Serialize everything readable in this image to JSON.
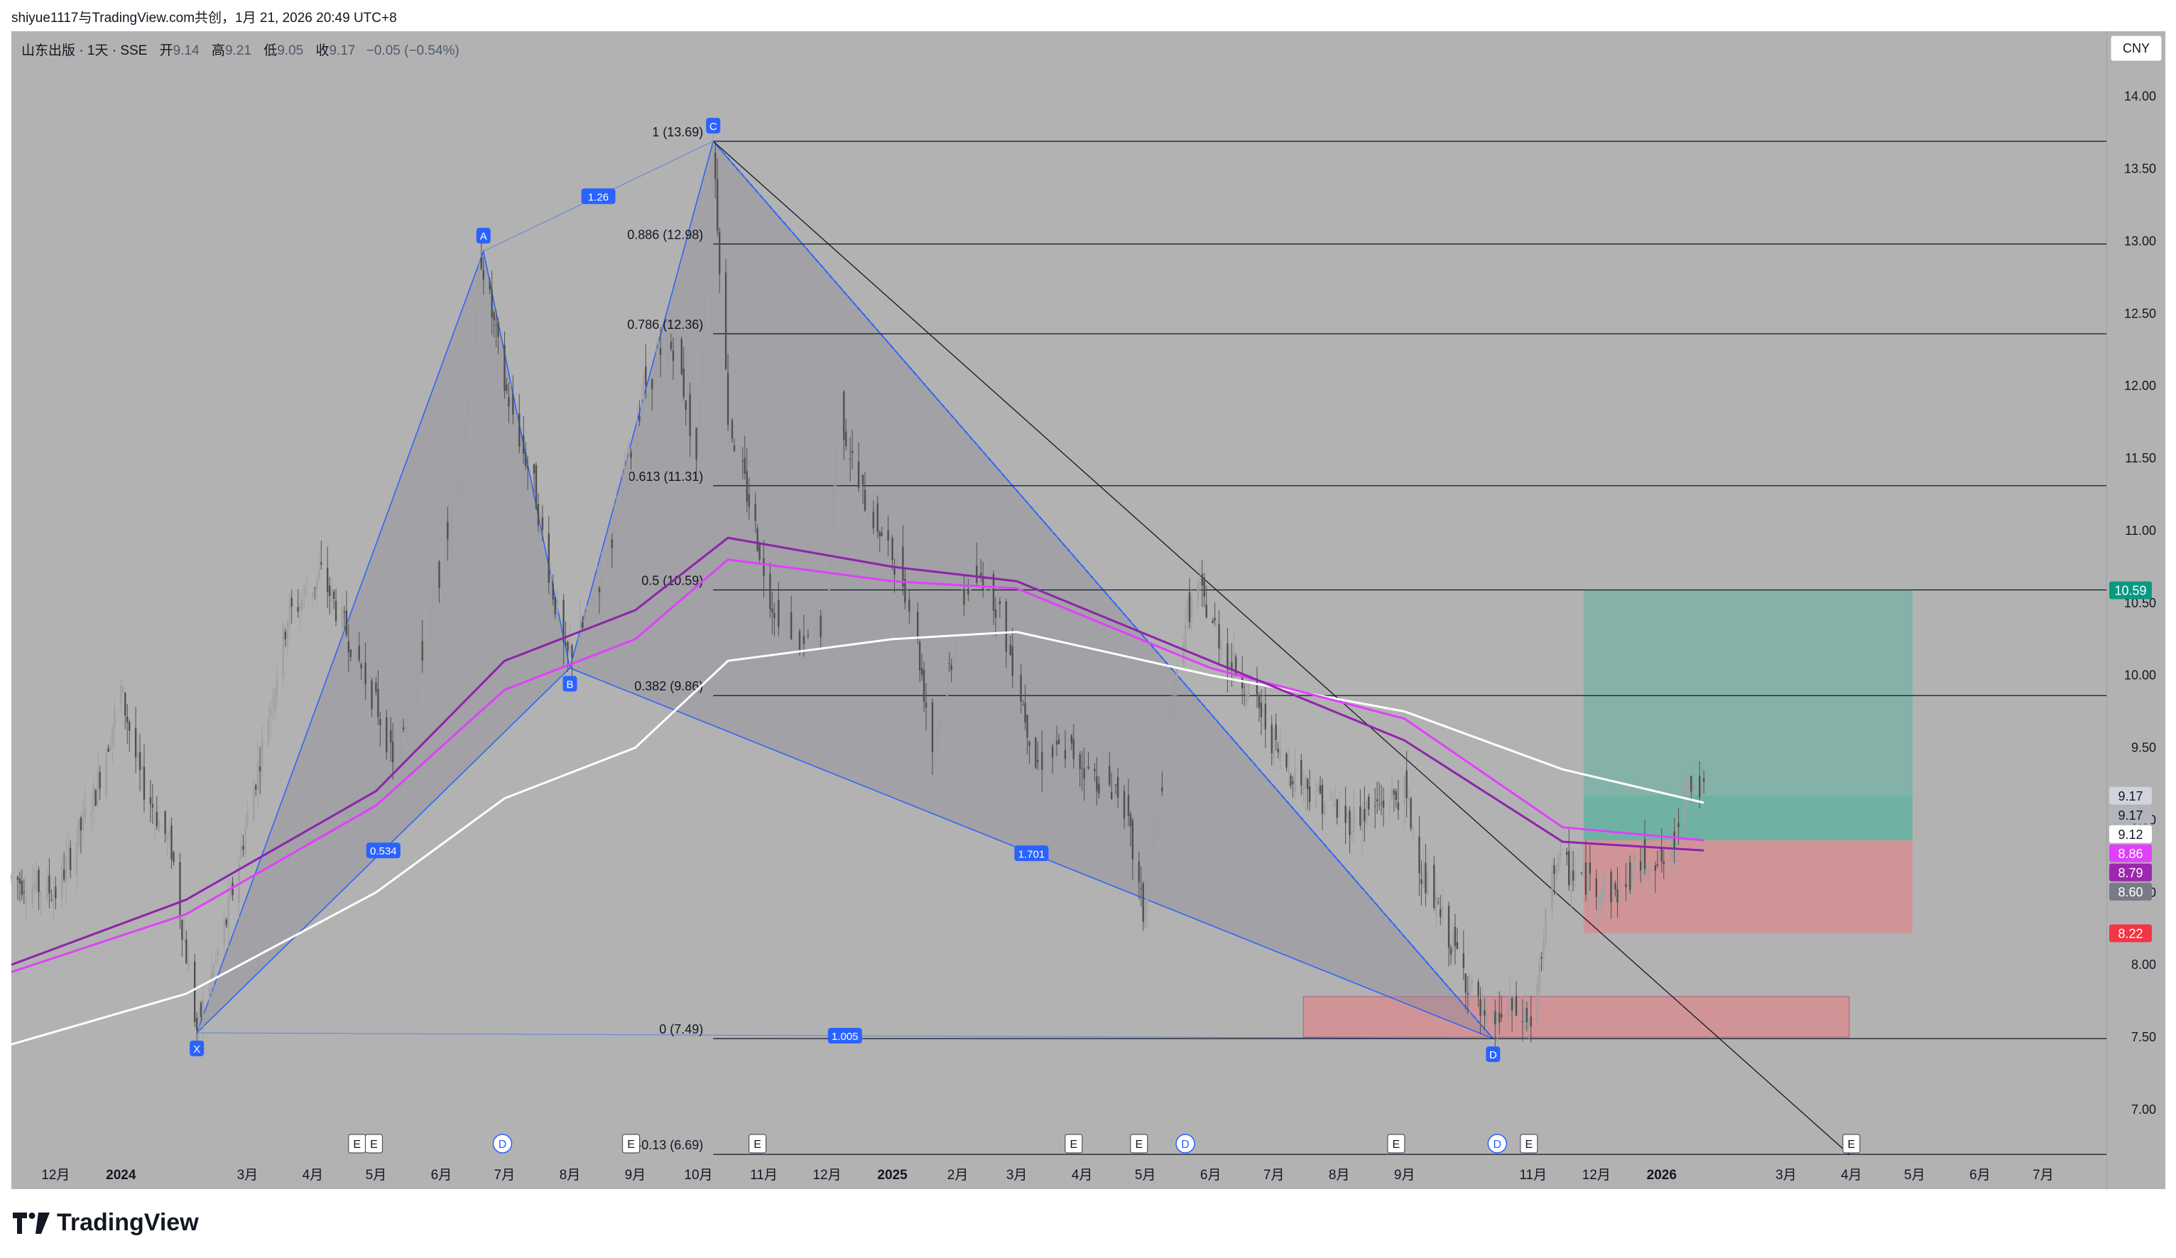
{
  "header": {
    "snapshot_text": "shiyue1117与TradingView.com共创，1月 21, 2026 20:49 UTC+8"
  },
  "legend": {
    "symbol": "山东出版 · 1天 · SSE",
    "open_label": "开",
    "open": "9.14",
    "high_label": "高",
    "high": "9.21",
    "low_label": "低",
    "low": "9.05",
    "close_label": "收",
    "close": "9.17",
    "change": "−0.05 (−0.54%)"
  },
  "currency_button": "CNY",
  "brand": "TradingView",
  "chart_data": {
    "type": "candlestick",
    "title": "山东出版 · 1天 · SSE",
    "ylim": [
      6.45,
      14.45
    ],
    "y_ticks": [
      "14.00",
      "13.50",
      "13.00",
      "12.50",
      "12.00",
      "11.50",
      "11.00",
      "10.50",
      "10.00",
      "9.50",
      "9.00",
      "8.50",
      "8.00",
      "7.50",
      "7.00"
    ],
    "x_ticks": [
      "12月",
      "2024",
      "3月",
      "4月",
      "5月",
      "6月",
      "7月",
      "8月",
      "9月",
      "10月",
      "11月",
      "12月",
      "2025",
      "2月",
      "3月",
      "4月",
      "5月",
      "6月",
      "7月",
      "8月",
      "9月",
      "11月",
      "12月",
      "2026",
      "3月",
      "4月",
      "5月",
      "6月",
      "7月"
    ],
    "x_tick_dates": [
      "2023-12-01",
      "2024-01-01",
      "2024-03-01",
      "2024-04-01",
      "2024-05-01",
      "2024-06-01",
      "2024-07-01",
      "2024-08-01",
      "2024-09-01",
      "2024-10-01",
      "2024-11-01",
      "2024-12-01",
      "2025-01-01",
      "2025-02-01",
      "2025-03-01",
      "2025-04-01",
      "2025-05-01",
      "2025-06-01",
      "2025-07-01",
      "2025-08-01",
      "2025-09-01",
      "2025-11-01",
      "2025-12-01",
      "2026-01-01",
      "2026-03-01",
      "2026-04-01",
      "2026-05-01",
      "2026-06-01",
      "2026-07-01"
    ],
    "x_range": [
      "2023-11-10",
      "2026-07-31"
    ],
    "price_path": [
      [
        "2023-11-10",
        8.6
      ],
      [
        "2023-12-01",
        8.5
      ],
      [
        "2023-12-20",
        9.2
      ],
      [
        "2024-01-01",
        9.9
      ],
      [
        "2024-01-10",
        9.3
      ],
      [
        "2024-01-25",
        8.8
      ],
      [
        "2024-02-06",
        7.55
      ],
      [
        "2024-02-20",
        8.3
      ],
      [
        "2024-03-05",
        9.3
      ],
      [
        "2024-03-20",
        10.4
      ],
      [
        "2024-04-05",
        10.7
      ],
      [
        "2024-04-20",
        10.2
      ],
      [
        "2024-05-01",
        9.8
      ],
      [
        "2024-05-10",
        9.4
      ],
      [
        "2024-05-25",
        10.3
      ],
      [
        "2024-06-10",
        11.4
      ],
      [
        "2024-06-20",
        12.9
      ],
      [
        "2024-07-01",
        12.0
      ],
      [
        "2024-07-15",
        11.3
      ],
      [
        "2024-07-30",
        10.1
      ],
      [
        "2024-08-10",
        10.4
      ],
      [
        "2024-08-25",
        11.2
      ],
      [
        "2024-09-05",
        12.0
      ],
      [
        "2024-09-20",
        12.3
      ],
      [
        "2024-09-30",
        11.5
      ],
      [
        "2024-10-08",
        13.69
      ],
      [
        "2024-10-15",
        11.8
      ],
      [
        "2024-10-25",
        11.2
      ],
      [
        "2024-11-05",
        10.5
      ],
      [
        "2024-11-20",
        10.2
      ],
      [
        "2024-12-01",
        10.4
      ],
      [
        "2024-12-06",
        11.9
      ],
      [
        "2024-12-16",
        11.3
      ],
      [
        "2025-01-02",
        10.8
      ],
      [
        "2025-01-10",
        10.5
      ],
      [
        "2025-01-20",
        9.5
      ],
      [
        "2025-02-05",
        10.6
      ],
      [
        "2025-02-15",
        10.7
      ],
      [
        "2025-03-01",
        10.0
      ],
      [
        "2025-03-10",
        9.4
      ],
      [
        "2025-03-25",
        9.5
      ],
      [
        "2025-04-07",
        9.3
      ],
      [
        "2025-04-20",
        9.2
      ],
      [
        "2025-04-30",
        8.35
      ],
      [
        "2025-05-10",
        9.4
      ],
      [
        "2025-05-20",
        10.4
      ],
      [
        "2025-05-26",
        10.6
      ],
      [
        "2025-06-10",
        10.1
      ],
      [
        "2025-06-20",
        9.9
      ],
      [
        "2025-07-05",
        9.4
      ],
      [
        "2025-07-20",
        9.2
      ],
      [
        "2025-08-05",
        9.0
      ],
      [
        "2025-08-20",
        9.1
      ],
      [
        "2025-09-01",
        9.2
      ],
      [
        "2025-09-10",
        8.6
      ],
      [
        "2025-09-25",
        8.1
      ],
      [
        "2025-10-10",
        7.55
      ],
      [
        "2025-10-20",
        7.7
      ],
      [
        "2025-10-31",
        7.6
      ],
      [
        "2025-11-05",
        8.0
      ],
      [
        "2025-11-10",
        8.7
      ],
      [
        "2025-11-25",
        8.6
      ],
      [
        "2025-12-10",
        8.5
      ],
      [
        "2025-12-25",
        8.75
      ],
      [
        "2026-01-05",
        8.7
      ],
      [
        "2026-01-12",
        9.3
      ],
      [
        "2026-01-21",
        9.17
      ]
    ],
    "moving_averages": [
      {
        "name": "MA1",
        "color": "#ffffff",
        "points": [
          [
            "2023-11-10",
            7.45
          ],
          [
            "2024-02-01",
            7.8
          ],
          [
            "2024-05-01",
            8.5
          ],
          [
            "2024-07-01",
            9.15
          ],
          [
            "2024-09-01",
            9.5
          ],
          [
            "2024-10-15",
            10.1
          ],
          [
            "2025-01-01",
            10.25
          ],
          [
            "2025-03-01",
            10.3
          ],
          [
            "2025-06-01",
            10.0
          ],
          [
            "2025-09-01",
            9.75
          ],
          [
            "2025-11-15",
            9.35
          ],
          [
            "2026-01-21",
            9.12
          ]
        ]
      },
      {
        "name": "MA2",
        "color": "#e040fb",
        "points": [
          [
            "2023-11-10",
            7.95
          ],
          [
            "2024-02-01",
            8.35
          ],
          [
            "2024-05-01",
            9.1
          ],
          [
            "2024-07-01",
            9.9
          ],
          [
            "2024-09-01",
            10.25
          ],
          [
            "2024-10-15",
            10.8
          ],
          [
            "2025-01-01",
            10.65
          ],
          [
            "2025-03-01",
            10.6
          ],
          [
            "2025-06-01",
            10.05
          ],
          [
            "2025-09-01",
            9.7
          ],
          [
            "2025-11-15",
            8.95
          ],
          [
            "2026-01-21",
            8.86
          ]
        ]
      },
      {
        "name": "MA3",
        "color": "#8e24aa",
        "points": [
          [
            "2023-11-10",
            8.0
          ],
          [
            "2024-02-01",
            8.45
          ],
          [
            "2024-05-01",
            9.2
          ],
          [
            "2024-07-01",
            10.1
          ],
          [
            "2024-09-01",
            10.45
          ],
          [
            "2024-10-15",
            10.95
          ],
          [
            "2025-01-01",
            10.75
          ],
          [
            "2025-03-01",
            10.65
          ],
          [
            "2025-06-01",
            10.1
          ],
          [
            "2025-09-01",
            9.55
          ],
          [
            "2025-11-15",
            8.85
          ],
          [
            "2026-01-21",
            8.79
          ]
        ]
      }
    ],
    "fib_levels": [
      {
        "label": "1 (13.69)",
        "value": 13.69
      },
      {
        "label": "0.886 (12.98)",
        "value": 12.98
      },
      {
        "label": "0.786 (12.36)",
        "value": 12.36
      },
      {
        "label": "0.613 (11.31)",
        "value": 11.31
      },
      {
        "label": "0.5 (10.59)",
        "value": 10.59
      },
      {
        "label": "0.382 (9.86)",
        "value": 9.86
      },
      {
        "label": "0 (7.49)",
        "value": 7.49
      },
      {
        "label": "-0.13 (6.69)",
        "value": 6.69
      }
    ],
    "harmonic_points": [
      {
        "label": "X",
        "date": "2024-02-06",
        "price": 7.53
      },
      {
        "label": "A",
        "date": "2024-06-21",
        "price": 12.93
      },
      {
        "label": "B",
        "date": "2024-08-01",
        "price": 10.05
      },
      {
        "label": "C",
        "date": "2024-10-08",
        "price": 13.69
      },
      {
        "label": "D",
        "date": "2025-10-13",
        "price": 7.49
      }
    ],
    "harmonic_ratios": [
      "0.534",
      "1.26",
      "1.701",
      "1.005"
    ],
    "price_labels": [
      {
        "value": "10.59",
        "bg": "#089981",
        "fg": "#ffffff"
      },
      {
        "value": "9.17",
        "bg": "#d1d4dc",
        "fg": "#131722"
      },
      {
        "value": "9.17",
        "bg": "#b2b5be",
        "fg": "#131722"
      },
      {
        "value": "9.12",
        "bg": "#ffffff",
        "fg": "#131722"
      },
      {
        "value": "8.86",
        "bg": "#e040fb",
        "fg": "#ffffff"
      },
      {
        "value": "8.79",
        "bg": "#9c27b0",
        "fg": "#ffffff"
      },
      {
        "value": "8.60",
        "bg": "#787b86",
        "fg": "#ffffff"
      },
      {
        "value": "8.22",
        "bg": "#f23645",
        "fg": "#ffffff"
      }
    ],
    "position": {
      "entry": 8.86,
      "target": 10.59,
      "stop": 8.22,
      "current": 9.17,
      "start": "2025-11-25",
      "end": "2026-04-30"
    },
    "demand_zone": {
      "top": 7.78,
      "bottom": 7.5,
      "start": "2025-07-15",
      "end": "2026-03-31"
    },
    "trendline": [
      {
        "date": "2024-10-08",
        "price": 13.69
      },
      {
        "date": "2026-03-31",
        "price": 6.69
      }
    ],
    "events": [
      {
        "type": "E",
        "date": "2024-04-22"
      },
      {
        "type": "E",
        "date": "2024-04-30"
      },
      {
        "type": "D",
        "date": "2024-06-30"
      },
      {
        "type": "E",
        "date": "2024-08-30"
      },
      {
        "type": "E",
        "date": "2024-10-29"
      },
      {
        "type": "E",
        "date": "2025-03-28"
      },
      {
        "type": "E",
        "date": "2025-04-28"
      },
      {
        "type": "D",
        "date": "2025-05-20"
      },
      {
        "type": "E",
        "date": "2025-08-28"
      },
      {
        "type": "D",
        "date": "2025-10-15"
      },
      {
        "type": "E",
        "date": "2025-10-30"
      },
      {
        "type": "E",
        "date": "2026-04-01"
      }
    ],
    "colors": {
      "background": "#b2b2b2",
      "up": "#a0a0a0",
      "down": "#505050",
      "harmonic": "#2962ff",
      "fib": "#131722",
      "target": "#5fb3a1",
      "stop": "#d98a8e"
    }
  }
}
